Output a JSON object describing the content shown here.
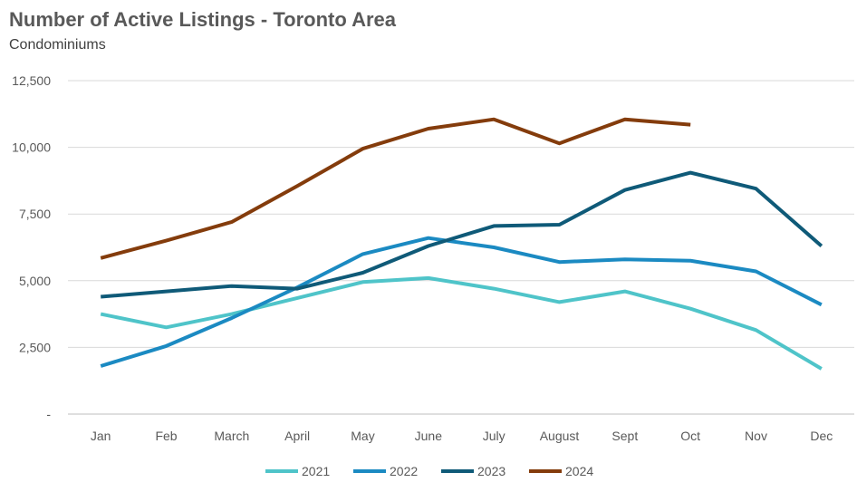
{
  "chart_data": {
    "type": "line",
    "title": "Number of Active Listings - Toronto Area",
    "subtitle": "Condominiums",
    "categories": [
      "Jan",
      "Feb",
      "March",
      "April",
      "May",
      "June",
      "July",
      "August",
      "Sept",
      "Oct",
      "Nov",
      "Dec"
    ],
    "ylim": [
      0,
      12500
    ],
    "y_ticks": [
      0,
      2500,
      5000,
      7500,
      10000,
      12500
    ],
    "y_tick_labels": [
      "-",
      "2,500",
      "5,000",
      "7,500",
      "10,000",
      "12,500"
    ],
    "grid": true,
    "legend_position": "bottom",
    "series": [
      {
        "name": "2021",
        "color": "#4fc4c9",
        "values": [
          3750,
          3250,
          3750,
          4350,
          4950,
          5100,
          4700,
          4200,
          4600,
          3950,
          3150,
          1700
        ]
      },
      {
        "name": "2022",
        "color": "#1b8ac2",
        "values": [
          1800,
          2550,
          3600,
          4750,
          6000,
          6600,
          6250,
          5700,
          5800,
          5750,
          5350,
          4100
        ]
      },
      {
        "name": "2023",
        "color": "#0f5a78",
        "values": [
          4400,
          4600,
          4800,
          4700,
          5300,
          6300,
          7050,
          7100,
          8400,
          9050,
          8450,
          6300
        ]
      },
      {
        "name": "2024",
        "color": "#843c0c",
        "values": [
          5850,
          6500,
          7200,
          8550,
          9950,
          10700,
          11050,
          10150,
          11050,
          10850,
          null,
          null
        ]
      }
    ]
  }
}
